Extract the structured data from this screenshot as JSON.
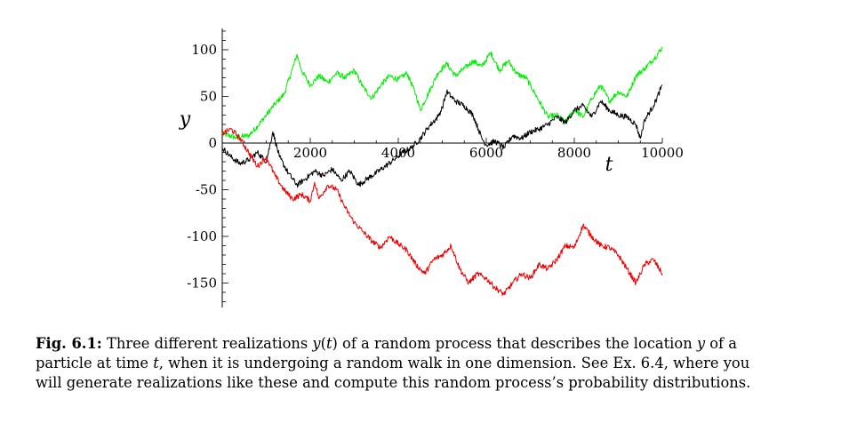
{
  "chart_data": {
    "type": "line",
    "xlabel": "t",
    "ylabel": "y",
    "xlim": [
      0,
      10000
    ],
    "ylim": [
      -175,
      125
    ],
    "x_ticks": [
      2000,
      4000,
      6000,
      8000,
      10000
    ],
    "y_ticks": [
      100,
      50,
      0,
      -50,
      -100,
      -150
    ],
    "grid": false,
    "series": [
      {
        "color": "#00ee00",
        "x": [
          0,
          300,
          600,
          800,
          1000,
          1200,
          1400,
          1600,
          1700,
          1800,
          2000,
          2200,
          2400,
          2600,
          2800,
          3000,
          3200,
          3400,
          3600,
          3800,
          4000,
          4200,
          4400,
          4500,
          4700,
          4900,
          5100,
          5300,
          5500,
          5700,
          5900,
          6100,
          6300,
          6500,
          6700,
          6900,
          7000,
          7200,
          7400,
          7600,
          7800,
          8000,
          8200,
          8400,
          8600,
          8800,
          9000,
          9200,
          9400,
          9600,
          9800,
          10000
        ],
        "y": [
          10,
          6,
          8,
          18,
          30,
          42,
          52,
          80,
          95,
          78,
          62,
          72,
          65,
          75,
          70,
          78,
          60,
          48,
          62,
          72,
          68,
          75,
          52,
          35,
          55,
          75,
          85,
          72,
          80,
          88,
          82,
          97,
          78,
          88,
          74,
          70,
          62,
          45,
          28,
          30,
          22,
          36,
          28,
          48,
          62,
          45,
          55,
          50,
          72,
          80,
          90,
          102
        ]
      },
      {
        "color": "#000000",
        "x": [
          0,
          200,
          400,
          600,
          800,
          1000,
          1150,
          1300,
          1500,
          1700,
          1900,
          2100,
          2300,
          2500,
          2700,
          2900,
          3100,
          3300,
          3500,
          3700,
          3900,
          4100,
          4300,
          4500,
          4700,
          4900,
          5000,
          5100,
          5300,
          5500,
          5700,
          5900,
          6000,
          6200,
          6400,
          6600,
          6800,
          7000,
          7200,
          7400,
          7600,
          7800,
          8000,
          8200,
          8400,
          8600,
          8800,
          9000,
          9200,
          9400,
          9500,
          9600,
          9800,
          10000
        ],
        "y": [
          -5,
          -15,
          -22,
          -18,
          -10,
          -20,
          12,
          -15,
          -32,
          -45,
          -38,
          -30,
          -35,
          -28,
          -40,
          -30,
          -45,
          -38,
          -32,
          -25,
          -18,
          -10,
          -5,
          5,
          18,
          28,
          38,
          55,
          45,
          40,
          30,
          5,
          -2,
          2,
          -5,
          8,
          5,
          12,
          15,
          20,
          28,
          22,
          35,
          40,
          28,
          45,
          35,
          30,
          28,
          20,
          5,
          25,
          40,
          62
        ]
      },
      {
        "color": "#ee0000",
        "x": [
          0,
          200,
          400,
          600,
          800,
          1000,
          1200,
          1400,
          1600,
          1800,
          2000,
          2100,
          2200,
          2400,
          2600,
          2800,
          3000,
          3200,
          3400,
          3600,
          3800,
          4000,
          4200,
          4400,
          4600,
          4800,
          5000,
          5200,
          5400,
          5600,
          5800,
          6000,
          6200,
          6400,
          6600,
          6800,
          7000,
          7200,
          7400,
          7600,
          7800,
          8000,
          8200,
          8400,
          8600,
          8800,
          9000,
          9200,
          9400,
          9600,
          9800,
          10000
        ],
        "y": [
          10,
          15,
          5,
          -10,
          -25,
          -15,
          -35,
          -50,
          -60,
          -55,
          -62,
          -42,
          -60,
          -45,
          -50,
          -70,
          -85,
          -95,
          -105,
          -112,
          -100,
          -108,
          -115,
          -130,
          -140,
          -125,
          -120,
          -110,
          -135,
          -150,
          -140,
          -145,
          -155,
          -162,
          -150,
          -140,
          -145,
          -130,
          -135,
          -125,
          -110,
          -112,
          -88,
          -100,
          -110,
          -112,
          -120,
          -135,
          -150,
          -130,
          -125,
          -140
        ]
      }
    ]
  },
  "caption": {
    "label": "Fig. 6.1:",
    "lines": [
      [
        {
          "t": "Three different realizations "
        },
        {
          "t": "y",
          "i": true
        },
        {
          "t": "("
        },
        {
          "t": "t",
          "i": true
        },
        {
          "t": ") of a random process that describes the location "
        },
        {
          "t": "y",
          "i": true
        },
        {
          "t": " of a"
        }
      ],
      [
        {
          "t": "particle at time "
        },
        {
          "t": "t",
          "i": true
        },
        {
          "t": ", when it is undergoing a random walk in one dimension. See Ex. 6.4, where you"
        }
      ],
      [
        {
          "t": "will generate realizations like these and compute this random process’s probability distributions."
        }
      ]
    ]
  }
}
